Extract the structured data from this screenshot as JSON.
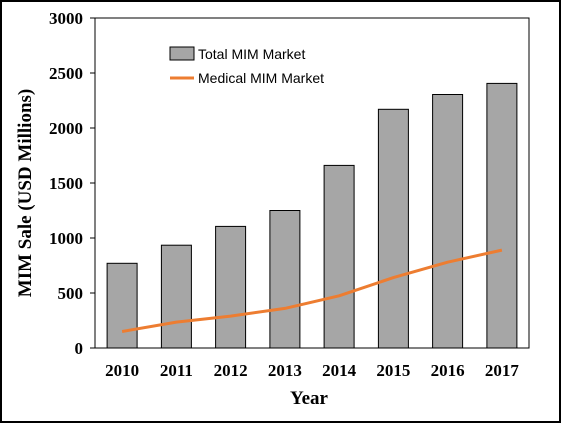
{
  "chart_data": {
    "type": "bar",
    "categories": [
      "2010",
      "2011",
      "2012",
      "2013",
      "2014",
      "2015",
      "2016",
      "2017"
    ],
    "series": [
      {
        "name": "Total MIM Market",
        "type": "bar",
        "color": "#a6a6a6",
        "values": [
          770,
          935,
          1105,
          1250,
          1660,
          2170,
          2305,
          2405
        ]
      },
      {
        "name": "Medical MIM Market",
        "type": "line",
        "color": "#ed7d31",
        "values": [
          150,
          235,
          290,
          360,
          475,
          640,
          780,
          890
        ]
      }
    ],
    "xlabel": "Year",
    "ylabel": "MIM Sale (USD Millions)",
    "ylim": [
      0,
      3000
    ],
    "yticks": [
      "0",
      "500",
      "1000",
      "1500",
      "2000",
      "2500",
      "3000"
    ],
    "grid": false,
    "legend_position": "top-left"
  }
}
